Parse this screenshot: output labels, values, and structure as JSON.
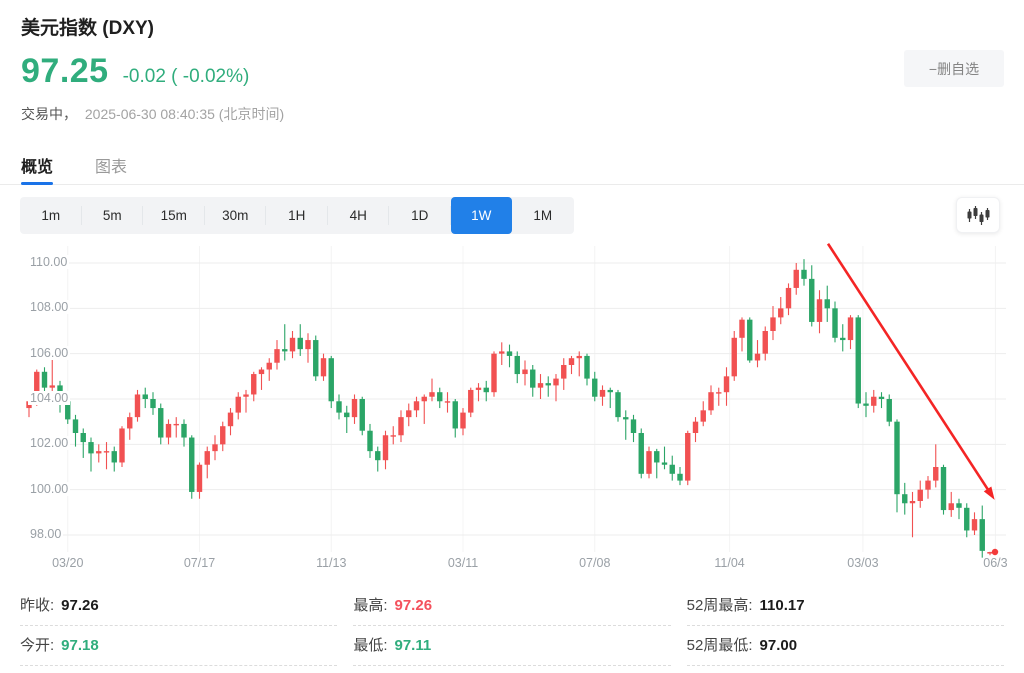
{
  "header": {
    "title": "美元指数 (DXY)",
    "price": "97.25",
    "change": "-0.02 ( -0.02%)",
    "status_prefix": "交易中，",
    "timestamp": "2025-06-30 08:40:35 (北京时间)",
    "remove_button": "−删自选"
  },
  "tabs": {
    "items": [
      "概览",
      "图表"
    ],
    "active": "概览"
  },
  "periods": {
    "options": [
      "1m",
      "5m",
      "15m",
      "30m",
      "1H",
      "4H",
      "1D",
      "1W",
      "1M"
    ],
    "active": "1W"
  },
  "icons": {
    "chart_style": "candlestick-chart-icon"
  },
  "colors": {
    "up_candle": "#f15152",
    "down_candle": "#2ba567",
    "arrow": "#f42525",
    "accent_blue": "#2180e8",
    "green_text": "#30ad7d",
    "red_text": "#f4515c",
    "grid": "#ededed",
    "grid_vertical": "#f4f4f4",
    "axis_text": "#9aa0a6"
  },
  "chart_data": {
    "type": "candlestick",
    "title": "美元指数 (DXY) 周K线",
    "interval": "1W",
    "color_convention": "red=up, green=down",
    "y_ticks": [
      110,
      108,
      106,
      104,
      102,
      100,
      98
    ],
    "ylim": [
      96.8,
      110.6
    ],
    "x_labels": [
      "03/20",
      "07/17",
      "11/13",
      "03/11",
      "07/08",
      "11/04",
      "03/03",
      "06/3"
    ],
    "x_label_weeks": [
      5,
      22,
      39,
      56,
      73,
      90.4,
      107.6,
      124.7
    ],
    "grid": true,
    "annotation_arrow": {
      "x1_week": 103.1,
      "y1_price": 110.85,
      "x2_week": 124.6,
      "y2_price": 99.55
    },
    "last_price_dot": 97.25,
    "candles": [
      [
        103.6,
        104.1,
        103.2,
        103.9
      ],
      [
        103.9,
        105.3,
        103.7,
        105.2
      ],
      [
        105.2,
        105.4,
        104.2,
        104.5
      ],
      [
        104.5,
        105.9,
        104.0,
        104.6
      ],
      [
        104.6,
        104.8,
        103.4,
        103.9
      ],
      [
        103.9,
        104.2,
        102.9,
        103.1
      ],
      [
        103.1,
        103.3,
        101.9,
        102.5
      ],
      [
        102.5,
        102.7,
        101.4,
        102.1
      ],
      [
        102.1,
        102.3,
        100.8,
        101.6
      ],
      [
        101.6,
        102.0,
        101.2,
        101.7
      ],
      [
        101.7,
        102.1,
        100.9,
        101.7
      ],
      [
        101.7,
        101.9,
        100.8,
        101.2
      ],
      [
        101.2,
        102.8,
        101.0,
        102.7
      ],
      [
        102.7,
        103.4,
        102.2,
        103.2
      ],
      [
        103.2,
        104.4,
        103.0,
        104.2
      ],
      [
        104.2,
        104.5,
        103.6,
        104.0
      ],
      [
        104.0,
        104.3,
        103.3,
        103.6
      ],
      [
        103.6,
        103.8,
        102.0,
        102.3
      ],
      [
        102.3,
        103.1,
        102.0,
        102.9
      ],
      [
        102.9,
        103.2,
        102.3,
        102.9
      ],
      [
        102.9,
        103.1,
        101.9,
        102.3
      ],
      [
        102.3,
        102.4,
        99.6,
        99.9
      ],
      [
        99.9,
        101.2,
        99.6,
        101.1
      ],
      [
        101.1,
        101.9,
        100.5,
        101.7
      ],
      [
        101.7,
        102.4,
        101.3,
        102.0
      ],
      [
        102.0,
        103.0,
        101.7,
        102.8
      ],
      [
        102.8,
        103.6,
        102.4,
        103.4
      ],
      [
        103.4,
        104.3,
        103.1,
        104.1
      ],
      [
        104.1,
        104.4,
        103.4,
        104.2
      ],
      [
        104.2,
        105.2,
        103.9,
        105.1
      ],
      [
        105.1,
        105.4,
        104.4,
        105.3
      ],
      [
        105.3,
        105.8,
        104.8,
        105.6
      ],
      [
        105.6,
        106.6,
        105.3,
        106.2
      ],
      [
        106.2,
        107.3,
        105.7,
        106.1
      ],
      [
        106.1,
        107.0,
        105.8,
        106.7
      ],
      [
        106.7,
        107.3,
        105.9,
        106.2
      ],
      [
        106.2,
        106.9,
        105.6,
        106.6
      ],
      [
        106.6,
        106.8,
        104.8,
        105.0
      ],
      [
        105.0,
        106.0,
        104.8,
        105.8
      ],
      [
        105.8,
        105.9,
        103.6,
        103.9
      ],
      [
        103.9,
        104.2,
        103.1,
        103.4
      ],
      [
        103.4,
        103.7,
        102.5,
        103.2
      ],
      [
        103.2,
        104.2,
        102.9,
        104.0
      ],
      [
        104.0,
        104.1,
        102.4,
        102.6
      ],
      [
        102.6,
        102.9,
        101.4,
        101.7
      ],
      [
        101.7,
        101.9,
        100.8,
        101.3
      ],
      [
        101.3,
        102.6,
        100.9,
        102.4
      ],
      [
        102.4,
        102.8,
        102.0,
        102.4
      ],
      [
        102.4,
        103.5,
        102.1,
        103.2
      ],
      [
        103.2,
        103.8,
        102.8,
        103.5
      ],
      [
        103.5,
        104.1,
        103.2,
        103.9
      ],
      [
        103.9,
        104.2,
        102.9,
        104.1
      ],
      [
        104.1,
        104.9,
        103.9,
        104.3
      ],
      [
        104.3,
        104.5,
        103.6,
        103.9
      ],
      [
        103.9,
        104.3,
        103.4,
        103.9
      ],
      [
        103.9,
        104.0,
        102.3,
        102.7
      ],
      [
        102.7,
        103.6,
        102.4,
        103.4
      ],
      [
        103.4,
        104.5,
        103.2,
        104.4
      ],
      [
        104.4,
        104.7,
        103.9,
        104.5
      ],
      [
        104.5,
        104.8,
        103.9,
        104.3
      ],
      [
        104.3,
        106.1,
        104.1,
        106.0
      ],
      [
        106.0,
        106.5,
        105.5,
        106.1
      ],
      [
        106.1,
        106.4,
        105.4,
        105.9
      ],
      [
        105.9,
        106.1,
        104.7,
        105.1
      ],
      [
        105.1,
        105.7,
        104.6,
        105.3
      ],
      [
        105.3,
        105.5,
        104.1,
        104.5
      ],
      [
        104.5,
        105.1,
        104.0,
        104.7
      ],
      [
        104.7,
        105.0,
        104.1,
        104.6
      ],
      [
        104.6,
        105.1,
        103.9,
        104.9
      ],
      [
        104.9,
        105.8,
        104.4,
        105.5
      ],
      [
        105.5,
        105.9,
        105.1,
        105.8
      ],
      [
        105.8,
        106.1,
        105.0,
        105.9
      ],
      [
        105.9,
        106.0,
        104.6,
        104.9
      ],
      [
        104.9,
        105.2,
        103.9,
        104.1
      ],
      [
        104.1,
        104.6,
        103.7,
        104.4
      ],
      [
        104.4,
        104.5,
        103.6,
        104.3
      ],
      [
        104.3,
        104.4,
        103.0,
        103.2
      ],
      [
        103.2,
        103.5,
        102.2,
        103.1
      ],
      [
        103.1,
        103.3,
        102.1,
        102.5
      ],
      [
        102.5,
        102.7,
        100.5,
        100.7
      ],
      [
        100.7,
        101.9,
        100.5,
        101.7
      ],
      [
        101.7,
        101.8,
        100.5,
        101.2
      ],
      [
        101.2,
        101.9,
        100.9,
        101.1
      ],
      [
        101.1,
        101.5,
        100.4,
        100.7
      ],
      [
        100.7,
        101.0,
        100.2,
        100.4
      ],
      [
        100.4,
        102.6,
        100.2,
        102.5
      ],
      [
        102.5,
        103.2,
        102.1,
        103.0
      ],
      [
        103.0,
        103.9,
        102.8,
        103.5
      ],
      [
        103.5,
        104.6,
        103.3,
        104.3
      ],
      [
        104.3,
        104.5,
        103.7,
        104.3
      ],
      [
        104.3,
        105.4,
        103.7,
        105.0
      ],
      [
        105.0,
        107.0,
        104.8,
        106.7
      ],
      [
        106.7,
        107.6,
        106.1,
        107.5
      ],
      [
        107.5,
        107.6,
        105.6,
        105.7
      ],
      [
        105.7,
        106.6,
        105.4,
        106.0
      ],
      [
        106.0,
        107.2,
        105.7,
        107.0
      ],
      [
        107.0,
        108.1,
        106.6,
        107.6
      ],
      [
        107.6,
        108.5,
        107.3,
        108.0
      ],
      [
        108.0,
        109.1,
        107.7,
        108.9
      ],
      [
        108.9,
        110.0,
        108.6,
        109.7
      ],
      [
        109.7,
        110.17,
        109.0,
        109.3
      ],
      [
        109.3,
        109.9,
        107.2,
        107.4
      ],
      [
        107.4,
        108.8,
        106.9,
        108.4
      ],
      [
        108.4,
        109.0,
        107.4,
        108.0
      ],
      [
        108.0,
        108.3,
        106.5,
        106.7
      ],
      [
        106.7,
        107.3,
        106.1,
        106.6
      ],
      [
        106.6,
        107.7,
        106.2,
        107.6
      ],
      [
        107.6,
        107.7,
        103.6,
        103.8
      ],
      [
        103.8,
        104.3,
        103.2,
        103.7
      ],
      [
        103.7,
        104.4,
        103.4,
        104.1
      ],
      [
        104.1,
        104.3,
        103.6,
        104.0
      ],
      [
        104.0,
        104.2,
        102.8,
        103.0
      ],
      [
        103.0,
        103.1,
        99.0,
        99.8
      ],
      [
        99.8,
        100.3,
        98.9,
        99.4
      ],
      [
        99.4,
        99.9,
        97.9,
        99.5
      ],
      [
        99.5,
        100.4,
        99.2,
        100.0
      ],
      [
        100.0,
        100.6,
        99.6,
        100.4
      ],
      [
        100.4,
        102.0,
        100.1,
        101.0
      ],
      [
        101.0,
        101.1,
        98.9,
        99.1
      ],
      [
        99.1,
        99.9,
        98.8,
        99.4
      ],
      [
        99.4,
        99.6,
        98.7,
        99.2
      ],
      [
        99.2,
        99.4,
        97.9,
        98.2
      ],
      [
        98.2,
        99.0,
        98.0,
        98.7
      ],
      [
        98.7,
        99.3,
        97.0,
        97.3
      ],
      [
        97.18,
        97.26,
        97.11,
        97.25
      ]
    ]
  },
  "stats": {
    "columns": [
      {
        "rows": [
          {
            "label": "昨收:",
            "value": "97.26",
            "tone": "dark"
          },
          {
            "label": "今开:",
            "value": "97.18",
            "tone": "green"
          }
        ]
      },
      {
        "rows": [
          {
            "label": "最高:",
            "value": "97.26",
            "tone": "red"
          },
          {
            "label": "最低:",
            "value": "97.11",
            "tone": "green"
          }
        ]
      },
      {
        "rows": [
          {
            "label": "52周最高:",
            "value": "110.17",
            "tone": "dark"
          },
          {
            "label": "52周最低:",
            "value": "97.00",
            "tone": "dark"
          }
        ]
      }
    ]
  }
}
